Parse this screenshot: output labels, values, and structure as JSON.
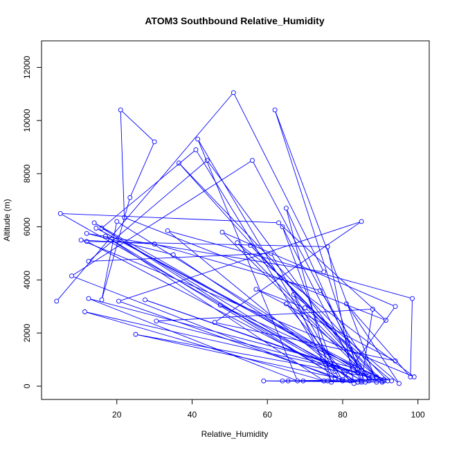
{
  "chart_data": {
    "type": "scatter",
    "title": "ATOM3 Southbound Relative_Humidity",
    "xlabel": "Relative_Humidity",
    "ylabel": "Altitude (m)",
    "xlim": [
      0,
      103
    ],
    "ylim": [
      -500,
      13000
    ],
    "xticks": [
      20,
      40,
      60,
      80,
      100
    ],
    "yticks": [
      0,
      2000,
      4000,
      6000,
      8000,
      10000,
      12000
    ],
    "xtick_labels": [
      "20",
      "40",
      "60",
      "80",
      "100"
    ],
    "ytick_labels": [
      "0",
      "2000",
      "4000",
      "6000",
      "8000",
      "10000",
      "12000"
    ],
    "series_color": "#0000ff",
    "connected": true,
    "points": [
      [
        4,
        3200
      ],
      [
        51,
        11050
      ],
      [
        75,
        4300
      ],
      [
        12,
        5750
      ],
      [
        35,
        4950
      ],
      [
        85,
        200
      ],
      [
        62,
        10400
      ],
      [
        89,
        150
      ],
      [
        20,
        6200
      ],
      [
        16,
        3250
      ],
      [
        23.5,
        7100
      ],
      [
        30,
        9200
      ],
      [
        21,
        10400
      ],
      [
        22,
        6350
      ],
      [
        91.5,
        2480
      ],
      [
        63,
        6150
      ],
      [
        5,
        6500
      ],
      [
        84,
        150
      ],
      [
        16,
        5950
      ],
      [
        41,
        8900
      ],
      [
        78,
        300
      ],
      [
        8,
        4150
      ],
      [
        56,
        8500
      ],
      [
        87,
        200
      ],
      [
        44,
        8500
      ],
      [
        12.5,
        4700
      ],
      [
        61,
        5000
      ],
      [
        80,
        200
      ],
      [
        14,
        6150
      ],
      [
        87,
        300
      ],
      [
        48,
        5800
      ],
      [
        94,
        3000
      ],
      [
        80,
        250
      ],
      [
        20.5,
        3200
      ],
      [
        85,
        6200
      ],
      [
        46,
        2400
      ],
      [
        94,
        950
      ],
      [
        57,
        3650
      ],
      [
        70,
        2950
      ],
      [
        93,
        200
      ],
      [
        30.5,
        2450
      ],
      [
        88,
        2900
      ],
      [
        85,
        150
      ],
      [
        64,
        6000
      ],
      [
        78,
        550
      ],
      [
        12,
        5450
      ],
      [
        76,
        5250
      ],
      [
        83,
        100
      ],
      [
        33.5,
        5850
      ],
      [
        98.5,
        3300
      ],
      [
        98,
        350
      ],
      [
        81,
        3100
      ],
      [
        95,
        100
      ],
      [
        67,
        3450
      ],
      [
        77,
        150
      ],
      [
        65,
        6700
      ],
      [
        86,
        150
      ],
      [
        47.5,
        3050
      ],
      [
        92,
        200
      ],
      [
        36.5,
        8400
      ],
      [
        87,
        400
      ],
      [
        52,
        5400
      ],
      [
        99,
        350
      ],
      [
        10.5,
        5500
      ],
      [
        30,
        5350
      ],
      [
        74,
        3600
      ],
      [
        89,
        300
      ],
      [
        25,
        1950
      ],
      [
        82,
        200
      ],
      [
        65,
        3100
      ],
      [
        90.5,
        200
      ],
      [
        55.5,
        5300
      ],
      [
        89,
        350
      ],
      [
        14.5,
        5950
      ],
      [
        84,
        650
      ],
      [
        12.5,
        3300
      ],
      [
        68,
        200
      ],
      [
        41.5,
        9300
      ],
      [
        79,
        300
      ],
      [
        17,
        5650
      ],
      [
        75,
        200
      ],
      [
        11.5,
        2800
      ],
      [
        84,
        500
      ],
      [
        27.5,
        3250
      ],
      [
        90.5,
        150
      ],
      [
        59,
        200
      ],
      [
        64,
        200
      ],
      [
        91,
        250
      ],
      [
        65.5,
        200
      ],
      [
        84,
        150
      ],
      [
        69.5,
        200
      ],
      [
        75,
        200
      ],
      [
        76,
        200
      ],
      [
        91,
        200
      ]
    ]
  }
}
